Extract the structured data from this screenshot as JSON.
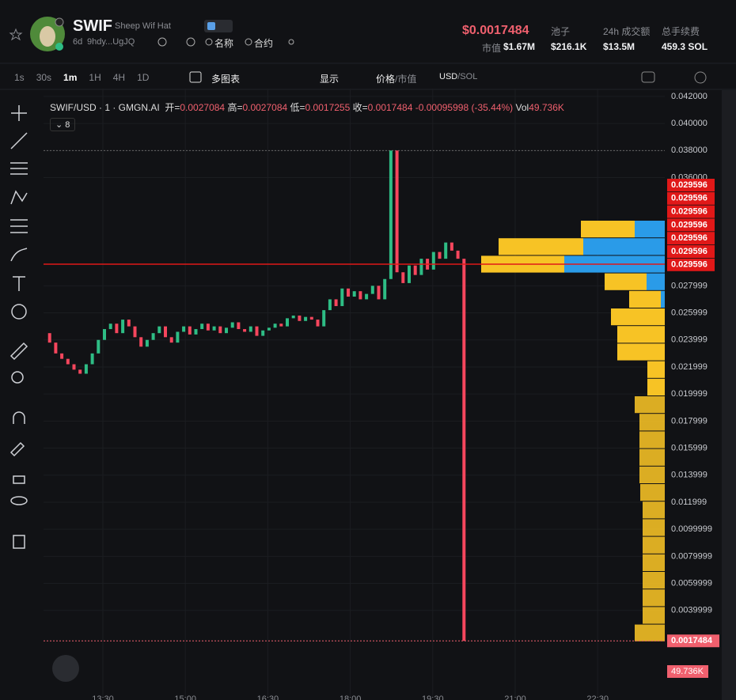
{
  "token": {
    "symbol": "SWIF",
    "name": "Sheep Wif Hat",
    "age": "6d",
    "address": "9hdy...UgJQ",
    "name_search": "名称",
    "contract_search": "合约"
  },
  "stats": {
    "price": "$0.0017484",
    "market_cap_label": "市值",
    "market_cap": "$1.67M",
    "pool_label": "池子",
    "pool": "$216.1K",
    "volume_label": "24h 成交额",
    "volume": "$13.5M",
    "fees_label": "总手续费",
    "fees": "459.3 SOL"
  },
  "toolbar": {
    "intervals": [
      "1s",
      "30s",
      "1m",
      "1H",
      "4H",
      "1D"
    ],
    "active_interval": 2,
    "multi_chart": "多图表",
    "display": "显示",
    "price_label": "价格",
    "separator": "/",
    "mcap_label": "市值",
    "currency": "USD",
    "currency_alt": "SOL"
  },
  "chart": {
    "legend": {
      "pair": "SWIF/USD · 1 · GMGN.AI",
      "open_label": "开=",
      "open": "0.0027084",
      "high_label": "高=",
      "high": "0.0027084",
      "low_label": "低=",
      "low": "0.0017255",
      "close_label": "收=",
      "close": "0.0017484",
      "change": "-0.00095998",
      "change_pct": "(-35.44%)",
      "vol_label": "Vol",
      "vol": "49.736K"
    },
    "indicator_count": "8",
    "ylim": [
      -0.00233,
      0.04258
    ],
    "price_ticks": [
      {
        "value": 0.042,
        "label": "0.042000"
      },
      {
        "value": 0.04,
        "label": "0.040000"
      },
      {
        "value": 0.038,
        "label": "0.038000"
      },
      {
        "value": 0.036,
        "label": "0.036000"
      },
      {
        "value": 0.027999,
        "label": "0.027999"
      },
      {
        "value": 0.025999,
        "label": "0.025999"
      },
      {
        "value": 0.023999,
        "label": "0.023999"
      },
      {
        "value": 0.021999,
        "label": "0.021999"
      },
      {
        "value": 0.019999,
        "label": "0.019999"
      },
      {
        "value": 0.017999,
        "label": "0.017999"
      },
      {
        "value": 0.015999,
        "label": "0.015999"
      },
      {
        "value": 0.013999,
        "label": "0.013999"
      },
      {
        "value": 0.011999,
        "label": "0.011999"
      },
      {
        "value": 0.0099999,
        "label": "0.0099999"
      },
      {
        "value": 0.0079999,
        "label": "0.0079999"
      },
      {
        "value": 0.0059999,
        "label": "0.0059999"
      },
      {
        "value": 0.0039999,
        "label": "0.0039999"
      }
    ],
    "alert_prices": [
      0.029596,
      0.029596,
      0.029596,
      0.029596,
      0.029596,
      0.029596,
      0.029596
    ],
    "last_price": 0.0017484,
    "last_volume": "49.736K",
    "time_ticks": [
      "13:30",
      "15:00",
      "16:30",
      "18:00",
      "19:30",
      "21:00",
      "22:30"
    ],
    "prices": [
      0.0245,
      0.0238,
      0.023,
      0.0226,
      0.0222,
      0.0218,
      0.0215,
      0.0222,
      0.023,
      0.024,
      0.0248,
      0.0252,
      0.0245,
      0.0255,
      0.025,
      0.0242,
      0.0235,
      0.024,
      0.0245,
      0.025,
      0.0242,
      0.0238,
      0.0246,
      0.025,
      0.0244,
      0.0248,
      0.0252,
      0.0247,
      0.025,
      0.0245,
      0.0249,
      0.0253,
      0.0248,
      0.0246,
      0.025,
      0.0243,
      0.0247,
      0.0249,
      0.0252,
      0.025,
      0.0256,
      0.0258,
      0.0254,
      0.0257,
      0.0255,
      0.025,
      0.0262,
      0.027,
      0.0265,
      0.0278,
      0.0272,
      0.0276,
      0.027,
      0.0274,
      0.028,
      0.027,
      0.0285,
      0.038,
      0.029,
      0.0282,
      0.0295,
      0.0288,
      0.03,
      0.0292,
      0.0305,
      0.03,
      0.0312,
      0.0306,
      0.03,
      0.0017484
    ],
    "up_color": "#2ebd85",
    "down_color": "#f6465d",
    "volume_profile": {
      "sell_color": "#f7c325",
      "buy_color": "#2a9be8",
      "rows": [
        {
          "sell": 68,
          "buy": 38
        },
        {
          "sell": 107,
          "buy": 103
        },
        {
          "sell": 105,
          "buy": 127
        },
        {
          "sell": 53,
          "buy": 23
        },
        {
          "sell": 40,
          "buy": 5
        },
        {
          "sell": 68,
          "buy": 0
        },
        {
          "sell": 60,
          "buy": 0
        },
        {
          "sell": 60,
          "buy": 0
        },
        {
          "sell": 22,
          "buy": 0
        },
        {
          "sell": 22,
          "buy": 0
        },
        {
          "sell": 38,
          "buy": 0
        },
        {
          "sell": 32,
          "buy": 0
        },
        {
          "sell": 32,
          "buy": 0
        },
        {
          "sell": 32,
          "buy": 0
        },
        {
          "sell": 32,
          "buy": 0
        },
        {
          "sell": 31,
          "buy": 0
        },
        {
          "sell": 28,
          "buy": 0
        },
        {
          "sell": 28,
          "buy": 0
        },
        {
          "sell": 28,
          "buy": 0
        },
        {
          "sell": 28,
          "buy": 0
        },
        {
          "sell": 28,
          "buy": 0
        },
        {
          "sell": 28,
          "buy": 0
        },
        {
          "sell": 28,
          "buy": 0
        },
        {
          "sell": 38,
          "buy": 0
        }
      ]
    }
  }
}
